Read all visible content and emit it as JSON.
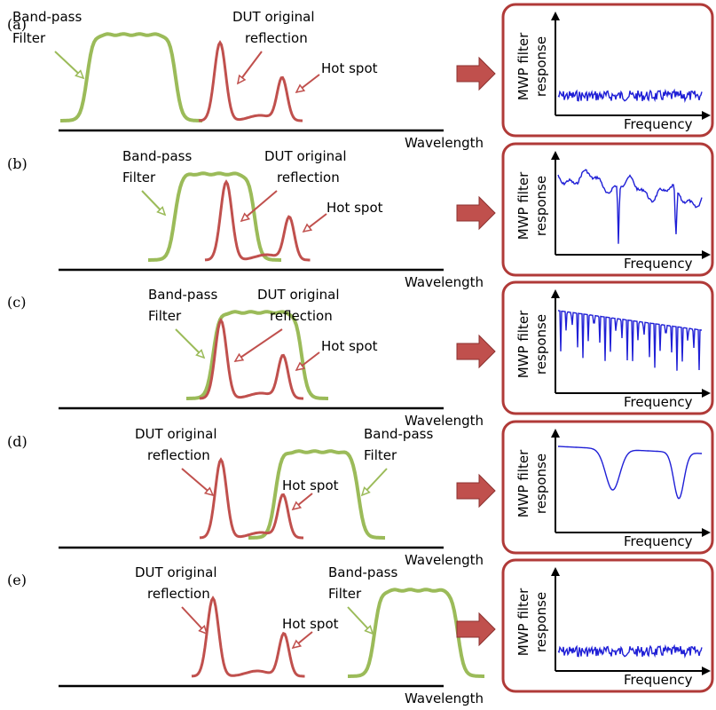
{
  "colors": {
    "filter": "#9bbb59",
    "reflection": "#c0504d",
    "arrow": "#c0504d",
    "response": "#1f1fd6",
    "box_border": "#b03a38",
    "axis": "#000000"
  },
  "axis_labels": {
    "wavelength": "Wavelength",
    "frequency": "Frequency",
    "response_line1": "MWP filter",
    "response_line2": "response"
  },
  "panels": [
    {
      "id": "a",
      "label": "(a)",
      "filter_label": [
        "Band-pass",
        "Filter"
      ],
      "reflection_label": [
        "DUT original",
        "reflection"
      ],
      "hotspot_label": "Hot spot",
      "response_type": "noise"
    },
    {
      "id": "b",
      "label": "(b)",
      "filter_label": [
        "Band-pass",
        "Filter"
      ],
      "reflection_label": [
        "DUT original",
        "reflection"
      ],
      "hotspot_label": "Hot spot",
      "response_type": "sparse-notches"
    },
    {
      "id": "c",
      "label": "(c)",
      "filter_label": [
        "Band-pass",
        "Filter"
      ],
      "reflection_label": [
        "DUT original",
        "reflection"
      ],
      "hotspot_label": "Hot spot",
      "response_type": "dense-notches"
    },
    {
      "id": "d",
      "label": "(d)",
      "filter_label": [
        "Band-pass",
        "Filter"
      ],
      "reflection_label": [
        "DUT original",
        "reflection"
      ],
      "hotspot_label": "Hot spot",
      "response_type": "wide-notches"
    },
    {
      "id": "e",
      "label": "(e)",
      "filter_label": [
        "Band-pass",
        "Filter"
      ],
      "reflection_label": [
        "DUT original",
        "reflection"
      ],
      "hotspot_label": "Hot spot",
      "response_type": "noise"
    }
  ]
}
